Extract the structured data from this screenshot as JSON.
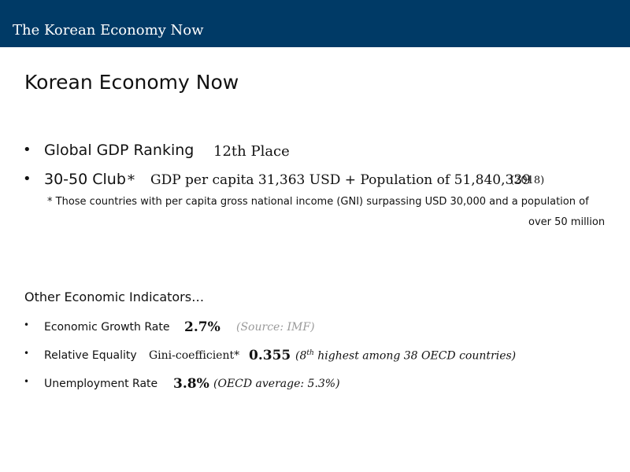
{
  "header": {
    "title": "The Korean Economy Now"
  },
  "slide": {
    "title": "Korean Economy Now"
  },
  "bullets": {
    "gdp": {
      "bullet": "•",
      "label": "Global GDP Ranking",
      "value": "12th Place"
    },
    "club": {
      "bullet": "•",
      "label": "30-50 Club",
      "asterisk": "*",
      "value": "GDP per capita 31,363 USD + Population of 51,840,339",
      "year": "(2018)"
    },
    "footnote": {
      "line1": "* Those countries with per capita gross national income (GNI) surpassing USD 30,000 and a population of",
      "line2": "over 50 million"
    }
  },
  "indicators": {
    "heading": "Other Economic Indicators…",
    "growth": {
      "bullet": "•",
      "label": "Economic Growth Rate",
      "value": "2.7%",
      "source": "(Source: IMF)"
    },
    "equality": {
      "bullet": "•",
      "label": "Relative Equality",
      "metric": "Gini-coefficient*",
      "value": "0.355",
      "note_open": "(8",
      "note_sup": "th",
      "note_rest": " highest among 38 OECD countries)"
    },
    "unemployment": {
      "bullet": "•",
      "label": "Unemployment Rate",
      "value": "3.8%",
      "note": "(OECD average: 5.3%)"
    }
  }
}
